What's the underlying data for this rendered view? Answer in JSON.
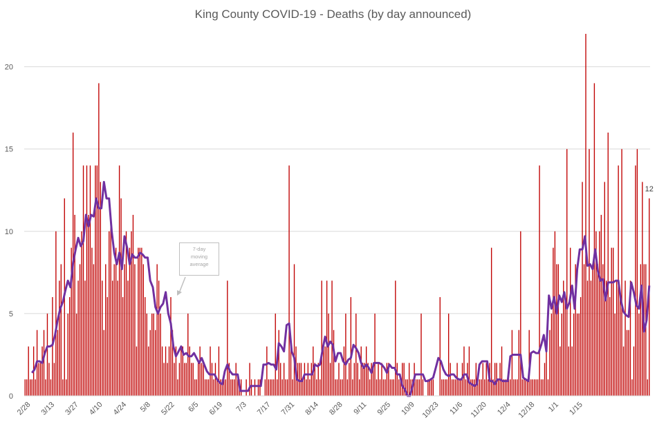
{
  "chart_data": {
    "type": "bar",
    "title": "King County COVID-19 - Deaths (by day announced)",
    "xlabel": "",
    "ylabel": "",
    "ylim": [
      0,
      22
    ],
    "yticks": [
      0,
      5,
      10,
      15,
      20
    ],
    "x_tick_labels": [
      "2/28",
      "3/13",
      "3/27",
      "4/10",
      "4/24",
      "5/8",
      "5/22",
      "6/5",
      "6/19",
      "7/3",
      "7/17",
      "7/31",
      "8/14",
      "8/28",
      "9/11",
      "9/25",
      "10/9",
      "10/23",
      "11/6",
      "11/20",
      "12/4",
      "12/18",
      "1/1",
      "1/15"
    ],
    "grid": true,
    "legend": "none",
    "series": [
      {
        "values": [
          1,
          1,
          3,
          1,
          1,
          3,
          1,
          4,
          2,
          2,
          3,
          4,
          1,
          5,
          2,
          1,
          6,
          2,
          10,
          4,
          7,
          8,
          1,
          12,
          1,
          5,
          6,
          9,
          16,
          11,
          5,
          7,
          8,
          10,
          14,
          7,
          14,
          11,
          14,
          9,
          8,
          14,
          14,
          19,
          13,
          7,
          4,
          8,
          6,
          10,
          11,
          7,
          8,
          9,
          7,
          14,
          12,
          6,
          8,
          10,
          7,
          9,
          10,
          11,
          8,
          3,
          9,
          9,
          9,
          8,
          6,
          5,
          3,
          4,
          5,
          5,
          4,
          8,
          7,
          5,
          3,
          2,
          3,
          2,
          3,
          6,
          4,
          2,
          3,
          1,
          2,
          3,
          3,
          2,
          2,
          5,
          3,
          2,
          2,
          1,
          1,
          2,
          3,
          2,
          2,
          1,
          1,
          1,
          3,
          2,
          1,
          2,
          1,
          3,
          1,
          1,
          1,
          1,
          7,
          2,
          1,
          1,
          1,
          2,
          1,
          1,
          1,
          0,
          0,
          1,
          0,
          2,
          1,
          0,
          1,
          0,
          1,
          1,
          0,
          0,
          1,
          3,
          1,
          1,
          1,
          1,
          5,
          1,
          4,
          2,
          1,
          2,
          1,
          1,
          14,
          3,
          1,
          8,
          3,
          2,
          2,
          2,
          1,
          2,
          1,
          2,
          1,
          2,
          3,
          2,
          1,
          2,
          1,
          7,
          3,
          3,
          7,
          5,
          2,
          7,
          4,
          1,
          1,
          2,
          1,
          1,
          3,
          5,
          1,
          2,
          6,
          1,
          2,
          5,
          2,
          1,
          3,
          2,
          2,
          3,
          2,
          1,
          2,
          2,
          5,
          1,
          2,
          1,
          2,
          1,
          1,
          2,
          2,
          1,
          1,
          1,
          7,
          2,
          1,
          1,
          2,
          2,
          1,
          1,
          2,
          1,
          1,
          2,
          1,
          1,
          1,
          5,
          1,
          0,
          0,
          1,
          1,
          1,
          1,
          0,
          0,
          0,
          6,
          1,
          1,
          1,
          1,
          5,
          2,
          1,
          1,
          1,
          2,
          1,
          1,
          2,
          3,
          1,
          2,
          3,
          1,
          1,
          1,
          2,
          1,
          1,
          1,
          2,
          1,
          2,
          1,
          2,
          9,
          1,
          2,
          2,
          1,
          2,
          3,
          1,
          1,
          1,
          1,
          1,
          4,
          1,
          1,
          1,
          4,
          10,
          1,
          1,
          1,
          1,
          4,
          1,
          1,
          1,
          1,
          1,
          14,
          1,
          1,
          2,
          3,
          1,
          4,
          5,
          9,
          10,
          8,
          8,
          3,
          5,
          7,
          6,
          15,
          3,
          9,
          3,
          5,
          8,
          5,
          5,
          6,
          13,
          8,
          22,
          7,
          15,
          7,
          8,
          19,
          10,
          8,
          10,
          11,
          8,
          13,
          7,
          16,
          6,
          9,
          9,
          5,
          7,
          14,
          6,
          15,
          3,
          7,
          4,
          4,
          7,
          1,
          3,
          14,
          15,
          5,
          8,
          13,
          8,
          8,
          1,
          12
        ]
      },
      {
        "name": "7-day moving average",
        "values": [
          1.4,
          1.6,
          2.1,
          2.1,
          2.0,
          2.6,
          3.0,
          3.0,
          3.1,
          3.7,
          4.6,
          5.3,
          5.7,
          6.4,
          7.0,
          6.6,
          8.1,
          8.9,
          9.6,
          9.1,
          9.4,
          11.0,
          10.3,
          11.0,
          10.9,
          12.0,
          11.4,
          11.4,
          13.0,
          12.0,
          12.0,
          10.0,
          8.7,
          8.0,
          8.7,
          7.7,
          9.7,
          9.0,
          8.0,
          8.6,
          8.4,
          8.4,
          8.7,
          8.6,
          8.4,
          8.4,
          7.0,
          6.6,
          5.4,
          5.0,
          5.4,
          5.6,
          6.3,
          5.0,
          4.4,
          3.0,
          2.4,
          2.7,
          3.0,
          2.5,
          2.6,
          2.4,
          2.4,
          2.6,
          2.3,
          2.0,
          2.3,
          1.9,
          1.5,
          1.3,
          1.3,
          1.3,
          1.0,
          0.8,
          0.7,
          1.5,
          1.9,
          1.5,
          1.3,
          1.3,
          1.3,
          0.3,
          0.3,
          0.3,
          0.3,
          0.6,
          0.6,
          0.6,
          0.6,
          0.6,
          1.9,
          1.9,
          2.0,
          1.9,
          1.9,
          1.6,
          3.2,
          3.0,
          2.7,
          4.3,
          4.4,
          2.7,
          2.3,
          1.0,
          0.9,
          0.9,
          1.3,
          1.3,
          1.3,
          1.3,
          1.9,
          1.8,
          1.9,
          2.8,
          3.6,
          3.0,
          3.3,
          3.1,
          2.1,
          2.6,
          2.6,
          2.1,
          1.9,
          2.2,
          2.3,
          3.1,
          2.9,
          2.6,
          2.0,
          1.7,
          1.9,
          1.7,
          1.4,
          2.0,
          2.0,
          2.0,
          1.9,
          1.7,
          1.4,
          1.9,
          1.7,
          1.7,
          1.3,
          1.3,
          0.6,
          0.4,
          0.0,
          0.0,
          0.6,
          1.3,
          1.3,
          1.3,
          1.3,
          0.9,
          0.9,
          1.0,
          1.1,
          1.7,
          2.3,
          2.1,
          1.6,
          1.3,
          1.2,
          1.3,
          1.3,
          1.1,
          1.0,
          1.0,
          1.3,
          1.3,
          0.8,
          0.7,
          0.6,
          0.7,
          1.9,
          2.1,
          2.1,
          2.1,
          0.9,
          0.9,
          0.7,
          1.0,
          1.0,
          0.9,
          0.9,
          0.9,
          2.4,
          2.5,
          2.5,
          2.5,
          2.5,
          1.1,
          1.0,
          0.9,
          2.6,
          2.7,
          2.6,
          2.6,
          3.1,
          3.7,
          2.7,
          6.1,
          5.3,
          6.0,
          5.0,
          6.1,
          5.7,
          6.3,
          5.3,
          5.7,
          6.7,
          5.3,
          7.7,
          8.9,
          8.9,
          9.7,
          7.9,
          8.0,
          7.7,
          8.9,
          7.6,
          7.0,
          7.1,
          5.8,
          6.9,
          6.9,
          6.9,
          7.0,
          7.0,
          5.8,
          5.1,
          4.9,
          4.8,
          6.9,
          6.3,
          5.5,
          5.3,
          6.7,
          3.9,
          4.6,
          6.7
        ]
      }
    ],
    "annotations": [
      {
        "text": [
          "7-day",
          "moving",
          "average"
        ],
        "target": "7-day moving average"
      }
    ],
    "last_value_label": "12"
  }
}
